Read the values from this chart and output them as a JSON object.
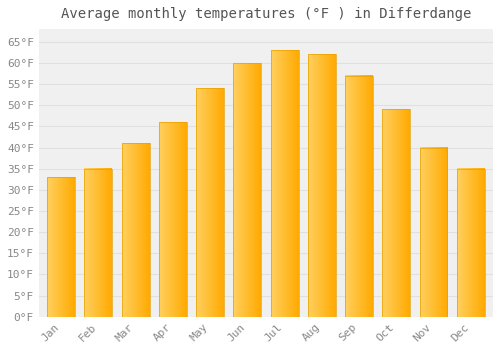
{
  "months": [
    "Jan",
    "Feb",
    "Mar",
    "Apr",
    "May",
    "Jun",
    "Jul",
    "Aug",
    "Sep",
    "Oct",
    "Nov",
    "Dec"
  ],
  "values": [
    33,
    35,
    41,
    46,
    54,
    60,
    63,
    62,
    57,
    49,
    40,
    35
  ],
  "bar_color_main": "#FFAA00",
  "bar_color_highlight": "#FFD060",
  "bar_color_edge": "#E8A000",
  "title": "Average monthly temperatures (°F ) in Differdange",
  "ylim": [
    0,
    68
  ],
  "yticks": [
    0,
    5,
    10,
    15,
    20,
    25,
    30,
    35,
    40,
    45,
    50,
    55,
    60,
    65
  ],
  "ytick_labels": [
    "0°F",
    "5°F",
    "10°F",
    "15°F",
    "20°F",
    "25°F",
    "30°F",
    "35°F",
    "40°F",
    "45°F",
    "50°F",
    "55°F",
    "60°F",
    "65°F"
  ],
  "background_color": "#ffffff",
  "plot_bg_color": "#f0f0f0",
  "grid_color": "#e0e0e0",
  "title_fontsize": 10,
  "tick_fontsize": 8,
  "tick_color": "#888888",
  "title_color": "#555555"
}
